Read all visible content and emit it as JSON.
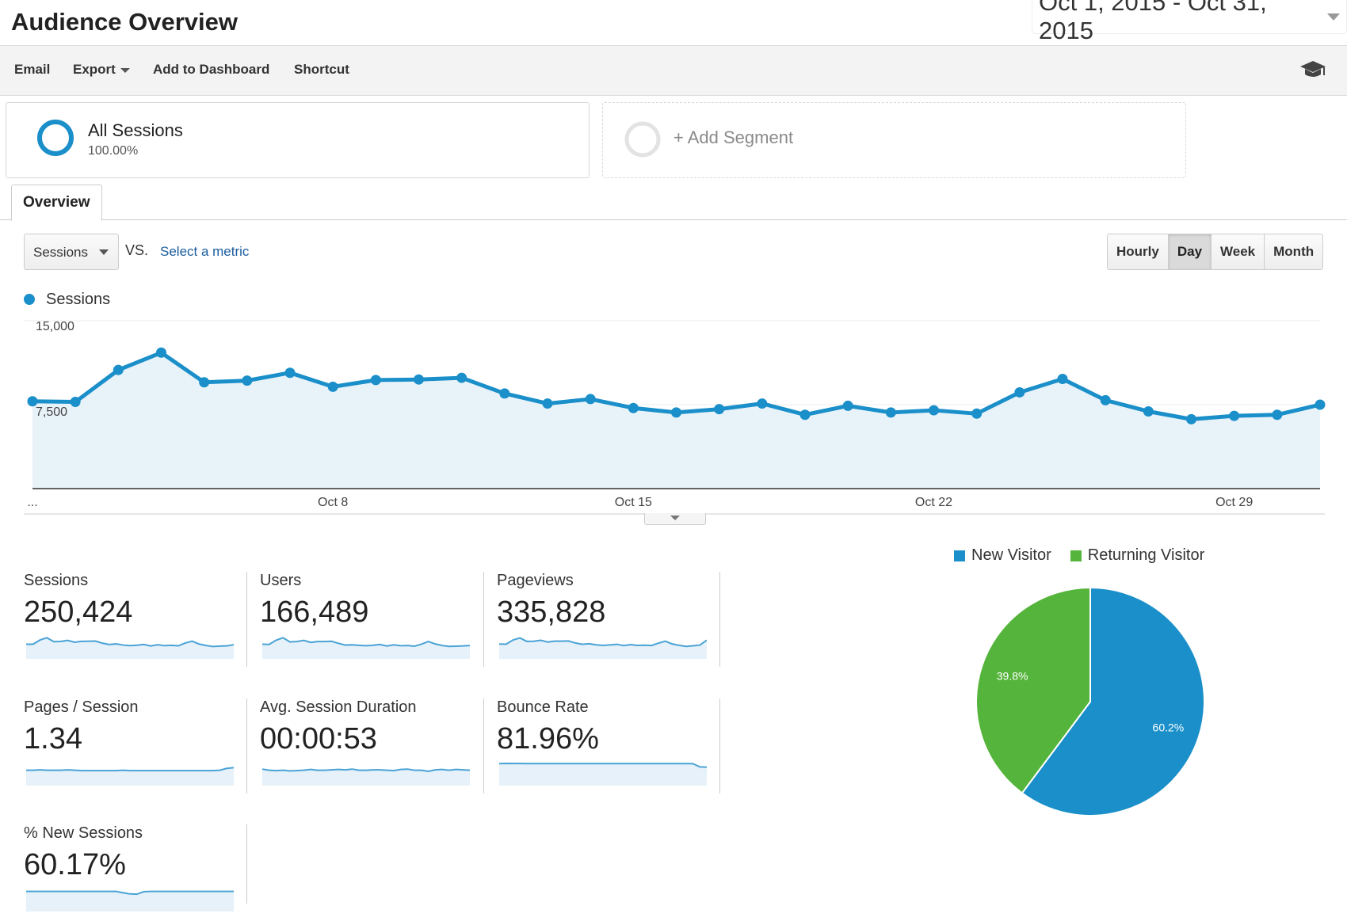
{
  "header": {
    "title": "Audience Overview",
    "date_range": "Oct 1, 2015 - Oct 31, 2015"
  },
  "toolbar": {
    "email_label": "Email",
    "export_label": "Export",
    "add_dashboard_label": "Add to Dashboard",
    "shortcut_label": "Shortcut",
    "help_icon": "graduation-cap-icon"
  },
  "segments": {
    "active": {
      "name": "All Sessions",
      "percent": "100.00%"
    },
    "add_label": "+ Add Segment"
  },
  "tabs": {
    "overview_label": "Overview"
  },
  "controls": {
    "metric_selected": "Sessions",
    "vs_label": "VS.",
    "select_metric_label": "Select a metric",
    "granularity": [
      {
        "label": "Hourly",
        "active": false
      },
      {
        "label": "Day",
        "active": true
      },
      {
        "label": "Week",
        "active": false
      },
      {
        "label": "Month",
        "active": false
      }
    ]
  },
  "colors": {
    "sessions_line": "#1a8fc9",
    "sessions_fill": "#e8f2f9",
    "new_visitor": "#1a8fc9",
    "returning_visitor": "#55b43b"
  },
  "chart_data": [
    {
      "type": "area",
      "legend": [
        "Sessions"
      ],
      "x_ticks": [
        "...",
        "Oct 8",
        "Oct 15",
        "Oct 22",
        "Oct 29"
      ],
      "y_ticks": [
        "15,000",
        "7,500"
      ],
      "ylim": [
        0,
        15000
      ],
      "grid": true,
      "series": [
        {
          "name": "Sessions",
          "x": [
            "Oct 1",
            "Oct 2",
            "Oct 3",
            "Oct 4",
            "Oct 5",
            "Oct 6",
            "Oct 7",
            "Oct 8",
            "Oct 9",
            "Oct 10",
            "Oct 11",
            "Oct 12",
            "Oct 13",
            "Oct 14",
            "Oct 15",
            "Oct 16",
            "Oct 17",
            "Oct 18",
            "Oct 19",
            "Oct 20",
            "Oct 21",
            "Oct 22",
            "Oct 23",
            "Oct 24",
            "Oct 25",
            "Oct 26",
            "Oct 27",
            "Oct 28",
            "Oct 29",
            "Oct 30",
            "Oct 31"
          ],
          "values": [
            7800,
            7750,
            10600,
            12150,
            9500,
            9650,
            10350,
            9100,
            9700,
            9750,
            9900,
            8500,
            7600,
            8000,
            7200,
            6800,
            7100,
            7600,
            6600,
            7400,
            6800,
            7000,
            6700,
            8600,
            9800,
            7900,
            6900,
            6200,
            6500,
            6600,
            7500
          ]
        }
      ]
    },
    {
      "type": "pie",
      "legend_placement": "top",
      "slices": [
        {
          "label": "New Visitor",
          "value": 60.2,
          "display": "60.2%"
        },
        {
          "label": "Returning Visitor",
          "value": 39.8,
          "display": "39.8%"
        }
      ]
    }
  ],
  "metrics": [
    {
      "label": "Sessions",
      "value": "250,424",
      "spark": [
        7800,
        7750,
        10600,
        12150,
        9500,
        9650,
        10350,
        9100,
        9700,
        9750,
        9900,
        8500,
        7600,
        8000,
        7200,
        6800,
        7100,
        7600,
        6600,
        7400,
        6800,
        7000,
        6700,
        8600,
        9800,
        7900,
        6900,
        6200,
        6500,
        6600,
        7500
      ],
      "spark_ylim": [
        0,
        15000
      ]
    },
    {
      "label": "Users",
      "value": "166,489",
      "spark": [
        5200,
        5100,
        7000,
        8100,
        6200,
        6400,
        6900,
        6000,
        6400,
        6400,
        6500,
        5600,
        4800,
        4900,
        4700,
        4500,
        4700,
        5100,
        4400,
        4900,
        4500,
        4600,
        4300,
        5200,
        6400,
        5300,
        4600,
        4200,
        4300,
        4400,
        4600
      ],
      "spark_ylim": [
        0,
        10000
      ]
    },
    {
      "label": "Pageviews",
      "value": "335,828",
      "spark": [
        10500,
        10400,
        14200,
        16000,
        12900,
        13000,
        13900,
        12300,
        13100,
        13100,
        13300,
        11500,
        10300,
        10800,
        9800,
        9300,
        9700,
        10300,
        9100,
        10000,
        9300,
        9500,
        9200,
        11300,
        13100,
        10600,
        9400,
        8400,
        8900,
        9600,
        14000
      ],
      "spark_ylim": [
        0,
        20000
      ]
    },
    {
      "label": "Pages / Session",
      "value": "1.34",
      "spark": [
        1.33,
        1.33,
        1.34,
        1.33,
        1.33,
        1.33,
        1.34,
        1.33,
        1.32,
        1.32,
        1.32,
        1.32,
        1.32,
        1.32,
        1.33,
        1.32,
        1.32,
        1.32,
        1.32,
        1.32,
        1.32,
        1.32,
        1.32,
        1.32,
        1.32,
        1.32,
        1.32,
        1.32,
        1.33,
        1.38,
        1.4
      ],
      "spark_ylim": [
        1.0,
        1.6
      ]
    },
    {
      "label": "Avg. Session Duration",
      "value": "00:00:53",
      "spark": [
        56,
        53,
        52,
        53,
        51,
        52,
        53,
        55,
        53,
        53,
        54,
        55,
        54,
        56,
        53,
        53,
        54,
        54,
        53,
        52,
        55,
        56,
        53,
        53,
        50,
        54,
        55,
        53,
        55,
        54,
        53
      ],
      "spark_ylim": [
        20,
        80
      ]
    },
    {
      "label": "Bounce Rate",
      "value": "81.96%",
      "spark": [
        84.0,
        84.2,
        84.1,
        84.1,
        84.0,
        84.0,
        84.0,
        84.0,
        84.0,
        84.0,
        84.0,
        84.0,
        84.0,
        83.9,
        83.9,
        83.9,
        83.9,
        83.9,
        83.9,
        83.9,
        83.9,
        83.9,
        83.9,
        83.9,
        83.9,
        83.9,
        83.9,
        83.9,
        83.8,
        78.0,
        77.5
      ],
      "spark_ylim": [
        50,
        90
      ]
    },
    {
      "label": "% New Sessions",
      "value": "60.17%",
      "spark": [
        61,
        61,
        61,
        61,
        61,
        61,
        61,
        61,
        61,
        61,
        61,
        61,
        61,
        61,
        56,
        52,
        51,
        60,
        61,
        61,
        61,
        61,
        61,
        61,
        61,
        61,
        61,
        61,
        61,
        61,
        61
      ],
      "spark_ylim": [
        0,
        80
      ]
    }
  ]
}
